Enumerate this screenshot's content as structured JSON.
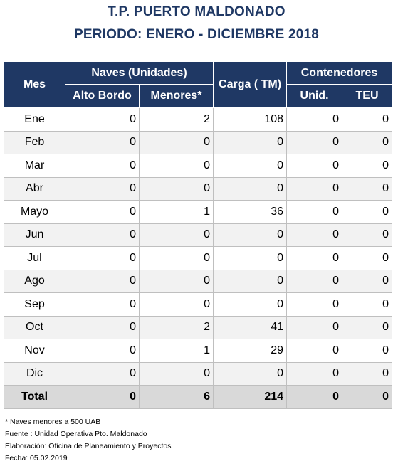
{
  "title": {
    "line1": "T.P. PUERTO MALDONADO",
    "line2": "PERIODO: ENERO - DICIEMBRE 2018"
  },
  "headers": {
    "mes": "Mes",
    "naves": "Naves (Unidades)",
    "alto_bordo": "Alto Bordo",
    "menores": "Menores*",
    "carga": "Carga ( TM)",
    "contenedores": "Contenedores",
    "unid": "Unid.",
    "teu": "TEU"
  },
  "rows": [
    {
      "mes": "Ene",
      "alto_bordo": "0",
      "menores": "2",
      "carga": "108",
      "unid": "0",
      "teu": "0"
    },
    {
      "mes": "Feb",
      "alto_bordo": "0",
      "menores": "0",
      "carga": "0",
      "unid": "0",
      "teu": "0"
    },
    {
      "mes": "Mar",
      "alto_bordo": "0",
      "menores": "0",
      "carga": "0",
      "unid": "0",
      "teu": "0"
    },
    {
      "mes": "Abr",
      "alto_bordo": "0",
      "menores": "0",
      "carga": "0",
      "unid": "0",
      "teu": "0"
    },
    {
      "mes": "Mayo",
      "alto_bordo": "0",
      "menores": "1",
      "carga": "36",
      "unid": "0",
      "teu": "0"
    },
    {
      "mes": "Jun",
      "alto_bordo": "0",
      "menores": "0",
      "carga": "0",
      "unid": "0",
      "teu": "0"
    },
    {
      "mes": "Jul",
      "alto_bordo": "0",
      "menores": "0",
      "carga": "0",
      "unid": "0",
      "teu": "0"
    },
    {
      "mes": "Ago",
      "alto_bordo": "0",
      "menores": "0",
      "carga": "0",
      "unid": "0",
      "teu": "0"
    },
    {
      "mes": "Sep",
      "alto_bordo": "0",
      "menores": "0",
      "carga": "0",
      "unid": "0",
      "teu": "0"
    },
    {
      "mes": "Oct",
      "alto_bordo": "0",
      "menores": "2",
      "carga": "41",
      "unid": "0",
      "teu": "0"
    },
    {
      "mes": "Nov",
      "alto_bordo": "0",
      "menores": "1",
      "carga": "29",
      "unid": "0",
      "teu": "0"
    },
    {
      "mes": "Dic",
      "alto_bordo": "0",
      "menores": "0",
      "carga": "0",
      "unid": "0",
      "teu": "0"
    }
  ],
  "total": {
    "label": "Total",
    "alto_bordo": "0",
    "menores": "6",
    "carga": "214",
    "unid": "0",
    "teu": "0"
  },
  "notes": {
    "footnote": "* Naves menores a 500 UAB",
    "fuente": "Fuente : Unidad Operativa Pto. Maldonado",
    "elaboracion": "Elaboración: Oficina de Planeamiento y Proyectos",
    "fecha": "Fecha: 05.02.2019"
  },
  "colors": {
    "header_bg": "#1f3864",
    "title_color": "#1f3864",
    "total_bg": "#d9d9d9",
    "alt_row_bg": "#f2f2f2"
  }
}
